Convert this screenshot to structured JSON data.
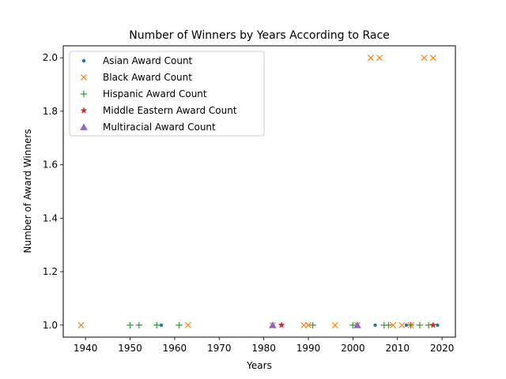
{
  "chart_data": {
    "type": "scatter",
    "title": "Number of Winners by Years According to Race",
    "xlabel": "Years",
    "ylabel": "Number of Award Winners",
    "xlim": [
      1935,
      2023
    ],
    "ylim": [
      0.955,
      2.045
    ],
    "xticks": [
      1940,
      1950,
      1960,
      1970,
      1980,
      1990,
      2000,
      2010,
      2020
    ],
    "yticks": [
      1.0,
      1.2,
      1.4,
      1.6,
      1.8,
      2.0
    ],
    "ytick_labels": [
      "1.0",
      "1.2",
      "1.4",
      "1.6",
      "1.8",
      "2.0"
    ],
    "grid": false,
    "legend_position": "top-left",
    "series": [
      {
        "name": "Asian Award Count",
        "marker": "dot",
        "color": "#1f77b4",
        "x": [
          1957,
          2005,
          2012,
          2019
        ],
        "y": [
          1,
          1,
          1,
          1
        ]
      },
      {
        "name": "Black Award Count",
        "marker": "x",
        "color": "#ff7f0e",
        "x": [
          1939,
          1963,
          1982,
          1989,
          1990,
          1996,
          2001,
          2004,
          2006,
          2009,
          2011,
          2013,
          2016,
          2018
        ],
        "y": [
          1,
          1,
          1,
          1,
          1,
          1,
          1,
          2,
          2,
          1,
          1,
          1,
          2,
          2
        ]
      },
      {
        "name": "Hispanic Award Count",
        "marker": "plus",
        "color": "#2ca02c",
        "x": [
          1950,
          1952,
          1956,
          1961,
          1991,
          2000,
          2007,
          2008,
          2013,
          2015,
          2017
        ],
        "y": [
          1,
          1,
          1,
          1,
          1,
          1,
          1,
          1,
          1,
          1,
          1
        ]
      },
      {
        "name": "Middle Eastern Award Count",
        "marker": "star",
        "color": "#d62728",
        "x": [
          1984,
          2018
        ],
        "y": [
          1,
          1
        ]
      },
      {
        "name": "Multiracial Award Count",
        "marker": "triangle",
        "color": "#9467bd",
        "x": [
          1982,
          2001
        ],
        "y": [
          1,
          1
        ]
      }
    ]
  }
}
